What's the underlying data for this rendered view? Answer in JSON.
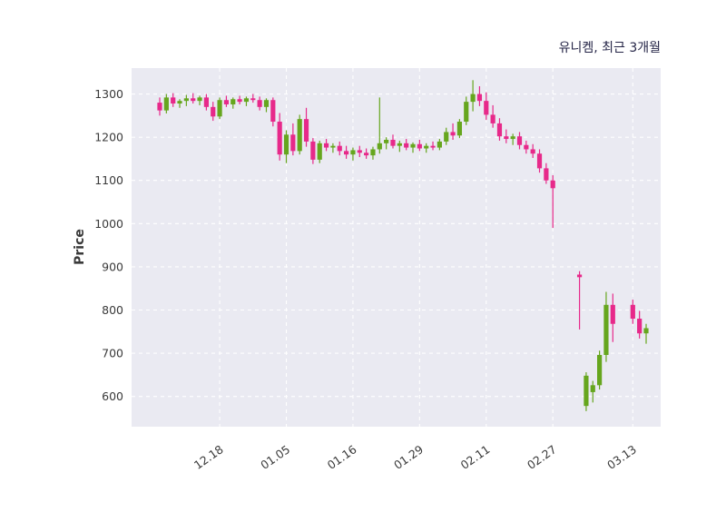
{
  "chart_data": {
    "type": "candlestick",
    "title": "유니켐, 최근 3개월",
    "ylabel": "Price",
    "ylim": [
      530,
      1360
    ],
    "y_ticks": [
      600,
      700,
      800,
      900,
      1000,
      1100,
      1200,
      1300
    ],
    "x_tick_labels": [
      "12.18",
      "01.05",
      "01.16",
      "01.29",
      "02.11",
      "02.27",
      "03.13"
    ],
    "x_tick_indices": [
      9,
      19,
      29,
      39,
      49,
      59,
      71
    ],
    "num_slots": 74,
    "grid": "dashed white on light gray, horizontal and vertical at ticks",
    "legend": "none",
    "colors": {
      "up": "#66a61e",
      "down": "#e7298a",
      "plot_bg": "#eaeaf2",
      "grid": "#ffffff",
      "tick_text": "#3a3a3a",
      "title_text": "#252547"
    },
    "ohlc": [
      [
        1280,
        1292,
        1250,
        1262
      ],
      [
        1262,
        1300,
        1255,
        1292
      ],
      [
        1292,
        1302,
        1270,
        1278
      ],
      [
        1278,
        1288,
        1268,
        1284
      ],
      [
        1284,
        1298,
        1272,
        1290
      ],
      [
        1290,
        1302,
        1278,
        1284
      ],
      [
        1284,
        1296,
        1274,
        1292
      ],
      [
        1292,
        1300,
        1262,
        1270
      ],
      [
        1270,
        1282,
        1238,
        1248
      ],
      [
        1248,
        1292,
        1242,
        1286
      ],
      [
        1286,
        1296,
        1270,
        1276
      ],
      [
        1276,
        1292,
        1266,
        1288
      ],
      [
        1288,
        1296,
        1276,
        1282
      ],
      [
        1282,
        1294,
        1272,
        1290
      ],
      [
        1290,
        1300,
        1280,
        1286
      ],
      [
        1286,
        1294,
        1262,
        1270
      ],
      [
        1270,
        1290,
        1258,
        1286
      ],
      [
        1286,
        1292,
        1225,
        1236
      ],
      [
        1236,
        1256,
        1146,
        1160
      ],
      [
        1160,
        1216,
        1140,
        1206
      ],
      [
        1206,
        1232,
        1158,
        1168
      ],
      [
        1168,
        1252,
        1160,
        1242
      ],
      [
        1242,
        1268,
        1178,
        1190
      ],
      [
        1190,
        1198,
        1138,
        1148
      ],
      [
        1148,
        1192,
        1140,
        1186
      ],
      [
        1186,
        1196,
        1168,
        1176
      ],
      [
        1176,
        1186,
        1164,
        1180
      ],
      [
        1180,
        1190,
        1158,
        1168
      ],
      [
        1168,
        1180,
        1150,
        1160
      ],
      [
        1160,
        1176,
        1146,
        1170
      ],
      [
        1170,
        1180,
        1154,
        1164
      ],
      [
        1164,
        1174,
        1150,
        1158
      ],
      [
        1158,
        1178,
        1148,
        1172
      ],
      [
        1172,
        1292,
        1162,
        1186
      ],
      [
        1186,
        1200,
        1172,
        1194
      ],
      [
        1194,
        1206,
        1174,
        1180
      ],
      [
        1180,
        1192,
        1166,
        1186
      ],
      [
        1186,
        1196,
        1170,
        1176
      ],
      [
        1176,
        1188,
        1164,
        1184
      ],
      [
        1184,
        1194,
        1168,
        1174
      ],
      [
        1174,
        1186,
        1164,
        1180
      ],
      [
        1180,
        1190,
        1170,
        1176
      ],
      [
        1176,
        1196,
        1170,
        1190
      ],
      [
        1190,
        1222,
        1182,
        1212
      ],
      [
        1212,
        1232,
        1194,
        1204
      ],
      [
        1204,
        1242,
        1198,
        1236
      ],
      [
        1236,
        1294,
        1228,
        1282
      ],
      [
        1282,
        1332,
        1260,
        1300
      ],
      [
        1300,
        1318,
        1272,
        1284
      ],
      [
        1284,
        1304,
        1240,
        1252
      ],
      [
        1252,
        1274,
        1222,
        1232
      ],
      [
        1232,
        1244,
        1192,
        1202
      ],
      [
        1202,
        1218,
        1186,
        1196
      ],
      [
        1196,
        1208,
        1182,
        1202
      ],
      [
        1202,
        1212,
        1172,
        1182
      ],
      [
        1182,
        1192,
        1162,
        1172
      ],
      [
        1172,
        1184,
        1152,
        1162
      ],
      [
        1162,
        1172,
        1118,
        1128
      ],
      [
        1128,
        1140,
        1092,
        1100
      ],
      [
        1100,
        1112,
        990,
        1082
      ],
      null,
      null,
      null,
      [
        882,
        890,
        755,
        876
      ],
      [
        578,
        656,
        566,
        648
      ],
      [
        610,
        636,
        586,
        626
      ],
      [
        626,
        706,
        616,
        696
      ],
      [
        696,
        842,
        680,
        812
      ],
      [
        812,
        838,
        726,
        768
      ],
      null,
      null,
      [
        812,
        824,
        768,
        780
      ],
      [
        780,
        798,
        734,
        746
      ],
      [
        746,
        768,
        722,
        758
      ]
    ]
  }
}
